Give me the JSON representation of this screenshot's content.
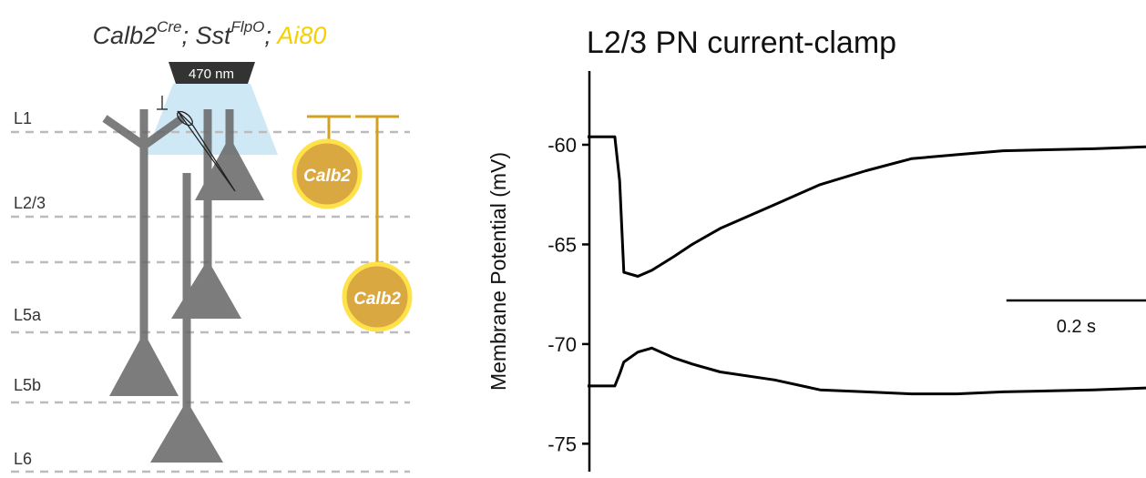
{
  "diagram": {
    "title": {
      "gene1": "Calb2",
      "sup1": "Cre",
      "sep1": "; Sst",
      "sup2": "FlpO",
      "sep2": "; ",
      "reporter": "Ai80"
    },
    "light": "470 nm",
    "layers": [
      "L1",
      "L2/3",
      "L5a",
      "L5b",
      "L6"
    ],
    "cells": [
      "Calb2",
      "Calb2"
    ]
  },
  "chart_data": {
    "type": "line",
    "title": "L2/3 PN current-clamp",
    "y_label": "Membrane Potential (mV)",
    "x": [
      0,
      0.039,
      0.046,
      0.052,
      0.072,
      0.092,
      0.124,
      0.15,
      0.19,
      0.268,
      0.333,
      0.399,
      0.464,
      0.529,
      0.595,
      0.725,
      0.8
    ],
    "series": [
      {
        "color": "#000000",
        "values": [
          -59.6,
          -59.6,
          -61.8,
          -66.4,
          -66.6,
          -66.3,
          -65.6,
          -65,
          -64.2,
          -63,
          -62,
          -61.3,
          -60.7,
          -60.5,
          -60.3,
          -60.2,
          -60.1
        ]
      },
      {
        "color": "#000000",
        "values": [
          -72.1,
          -72.1,
          -71.5,
          -70.9,
          -70.4,
          -70.2,
          -70.7,
          -71,
          -71.4,
          -71.8,
          -72.3,
          -72.4,
          -72.5,
          -72.5,
          -72.4,
          -72.3,
          -72.2
        ]
      }
    ],
    "xlim": [
      0,
      0.8
    ],
    "ylim": [
      -76.4,
      -56.3
    ],
    "yticks": [
      -60,
      -65,
      -70,
      -75
    ],
    "scalebar": {
      "value": 0.2,
      "label": "0.2 s"
    }
  }
}
